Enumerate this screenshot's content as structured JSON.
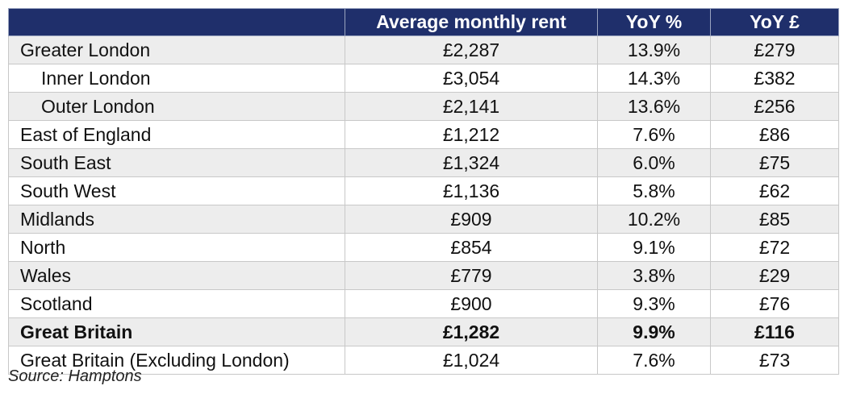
{
  "table": {
    "headers": [
      "",
      "Average monthly rent",
      "YoY %",
      "YoY £"
    ],
    "rows": [
      {
        "region": "Greater London",
        "rent": "£2,287",
        "yoy_pct": "13.9%",
        "yoy_gbp": "£279",
        "indent": false,
        "bold": false
      },
      {
        "region": "Inner London",
        "rent": "£3,054",
        "yoy_pct": "14.3%",
        "yoy_gbp": "£382",
        "indent": true,
        "bold": false
      },
      {
        "region": "Outer London",
        "rent": "£2,141",
        "yoy_pct": "13.6%",
        "yoy_gbp": "£256",
        "indent": true,
        "bold": false
      },
      {
        "region": "East of England",
        "rent": "£1,212",
        "yoy_pct": "7.6%",
        "yoy_gbp": "£86",
        "indent": false,
        "bold": false
      },
      {
        "region": "South East",
        "rent": "£1,324",
        "yoy_pct": "6.0%",
        "yoy_gbp": "£75",
        "indent": false,
        "bold": false
      },
      {
        "region": "South West",
        "rent": "£1,136",
        "yoy_pct": "5.8%",
        "yoy_gbp": "£62",
        "indent": false,
        "bold": false
      },
      {
        "region": "Midlands",
        "rent": "£909",
        "yoy_pct": "10.2%",
        "yoy_gbp": "£85",
        "indent": false,
        "bold": false
      },
      {
        "region": "North",
        "rent": "£854",
        "yoy_pct": "9.1%",
        "yoy_gbp": "£72",
        "indent": false,
        "bold": false
      },
      {
        "region": "Wales",
        "rent": "£779",
        "yoy_pct": "3.8%",
        "yoy_gbp": "£29",
        "indent": false,
        "bold": false
      },
      {
        "region": "Scotland",
        "rent": "£900",
        "yoy_pct": "9.3%",
        "yoy_gbp": "£76",
        "indent": false,
        "bold": false
      },
      {
        "region": "Great Britain",
        "rent": "£1,282",
        "yoy_pct": "9.9%",
        "yoy_gbp": "£116",
        "indent": false,
        "bold": true
      },
      {
        "region": "Great Britain (Excluding London)",
        "rent": "£1,024",
        "yoy_pct": "7.6%",
        "yoy_gbp": "£73",
        "indent": false,
        "bold": false
      }
    ]
  },
  "source": "Source: Hamptons",
  "colors": {
    "header_bg": "#1f2f6b",
    "stripe": "#ededed"
  }
}
